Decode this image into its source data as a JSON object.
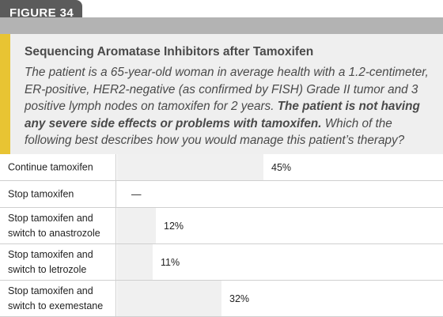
{
  "figure": {
    "tab_label": "FIGURE 34"
  },
  "question": {
    "title": "Sequencing Aromatase Inhibitors after Tamoxifen",
    "text_part1": "The patient is a 65-year-old woman in average health with a 1.2-centimeter, ER-positive, HER2-negative (as confirmed by FISH) Grade II tumor and 3 positive lymph nodes on tamoxifen for 2 years.",
    "text_bold": "The patient is not having any severe side effects or problems with tamoxifen.",
    "text_part2": "Which of the following best describes how you would manage this patient’s therapy?"
  },
  "colors": {
    "tab": "#5b5b5b",
    "header_bar": "#b3b3b3",
    "accent": "#e8c433",
    "description_bg": "#efefef",
    "bar_fill": "#f0f0f0"
  },
  "chart_data": {
    "type": "bar",
    "orientation": "horizontal",
    "categories": [
      "Continue tamoxifen",
      "Stop tamoxifen",
      "Stop tamoxifen and\nswitch to anastrozole",
      "Stop tamoxifen and\nswitch to letrozole",
      "Stop tamoxifen and\nswitch to exemestane"
    ],
    "values": [
      45,
      null,
      12,
      11,
      32
    ],
    "value_labels": [
      "45%",
      "—",
      "12%",
      "11%",
      "32%"
    ],
    "unit": "%",
    "xlim": [
      0,
      100
    ]
  }
}
